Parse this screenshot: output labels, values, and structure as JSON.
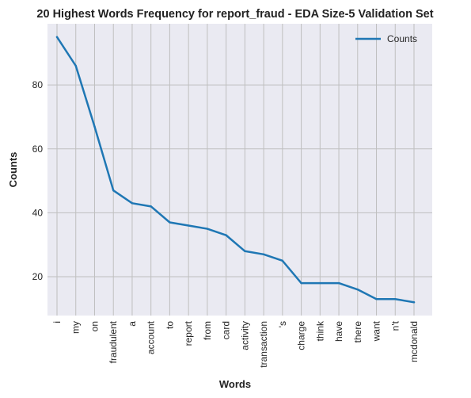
{
  "chart_data": {
    "type": "line",
    "title": "20 Highest Words Frequency for report_fraud - EDA Size-5 Validation Set",
    "xlabel": "Words",
    "ylabel": "Counts",
    "categories": [
      "i",
      "my",
      "on",
      "fraudulent",
      "a",
      "account",
      "to",
      "report",
      "from",
      "card",
      "activity",
      "transaction",
      "'s",
      "charge",
      "think",
      "have",
      "there",
      "want",
      "n't",
      "mcdonald"
    ],
    "series": [
      {
        "name": "Counts",
        "values": [
          95,
          86,
          67,
          47,
          43,
          42,
          37,
          36,
          35,
          33,
          28,
          27,
          25,
          18,
          18,
          18,
          16,
          13,
          13,
          12
        ]
      }
    ],
    "ylim": [
      7.85,
      99.15
    ],
    "yticks": [
      20,
      40,
      60,
      80
    ],
    "grid": true,
    "legend": "top-right",
    "colors": {
      "line": "#1f77b4",
      "plot_bg": "#eaeaf2",
      "grid": "#bfbfbf"
    }
  }
}
